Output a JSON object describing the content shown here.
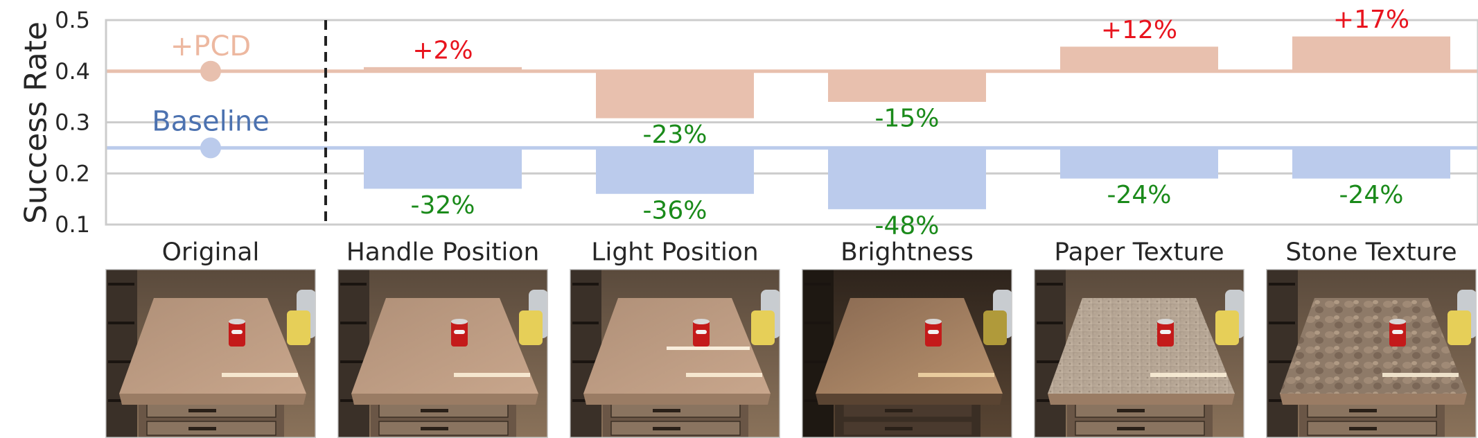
{
  "colors": {
    "pcd": "#E8C0AE",
    "pcd_text": "#EDB8A0",
    "baseline": "#BBCBEC",
    "baseline_text": "#4C72B0",
    "positive": "#E8141E",
    "negative": "#1A8A1A",
    "grid": "#CCCCCC",
    "divider": "#222222"
  },
  "chart_data": {
    "type": "bar",
    "ylabel": "Success Rate",
    "ylim": [
      0.1,
      0.5
    ],
    "yticks": [
      "0.1",
      "0.2",
      "0.3",
      "0.4",
      "0.5"
    ],
    "grid": true,
    "reference": {
      "category": "Original",
      "pcd": {
        "name": "+PCD",
        "value": 0.4
      },
      "baseline": {
        "name": "Baseline",
        "value": 0.25
      }
    },
    "categories": [
      "Handle Position",
      "Light Position",
      "Brightness",
      "Paper Texture",
      "Stone Texture"
    ],
    "series": [
      {
        "name": "+PCD",
        "values": [
          0.408,
          0.308,
          0.34,
          0.448,
          0.468
        ],
        "labels": [
          "+2%",
          "-23%",
          "-15%",
          "+12%",
          "+17%"
        ]
      },
      {
        "name": "Baseline",
        "values": [
          0.17,
          0.16,
          0.13,
          0.19,
          0.19
        ],
        "labels": [
          "-32%",
          "-36%",
          "-48%",
          "-24%",
          "-24%"
        ]
      }
    ]
  },
  "panels": [
    {
      "title": "Original",
      "icon": "table-scene-photo"
    },
    {
      "title": "Handle Position",
      "icon": "table-scene-photo"
    },
    {
      "title": "Light Position",
      "icon": "table-scene-photo"
    },
    {
      "title": "Brightness",
      "icon": "table-scene-photo"
    },
    {
      "title": "Paper Texture",
      "icon": "table-scene-photo"
    },
    {
      "title": "Stone Texture",
      "icon": "table-scene-photo"
    }
  ]
}
